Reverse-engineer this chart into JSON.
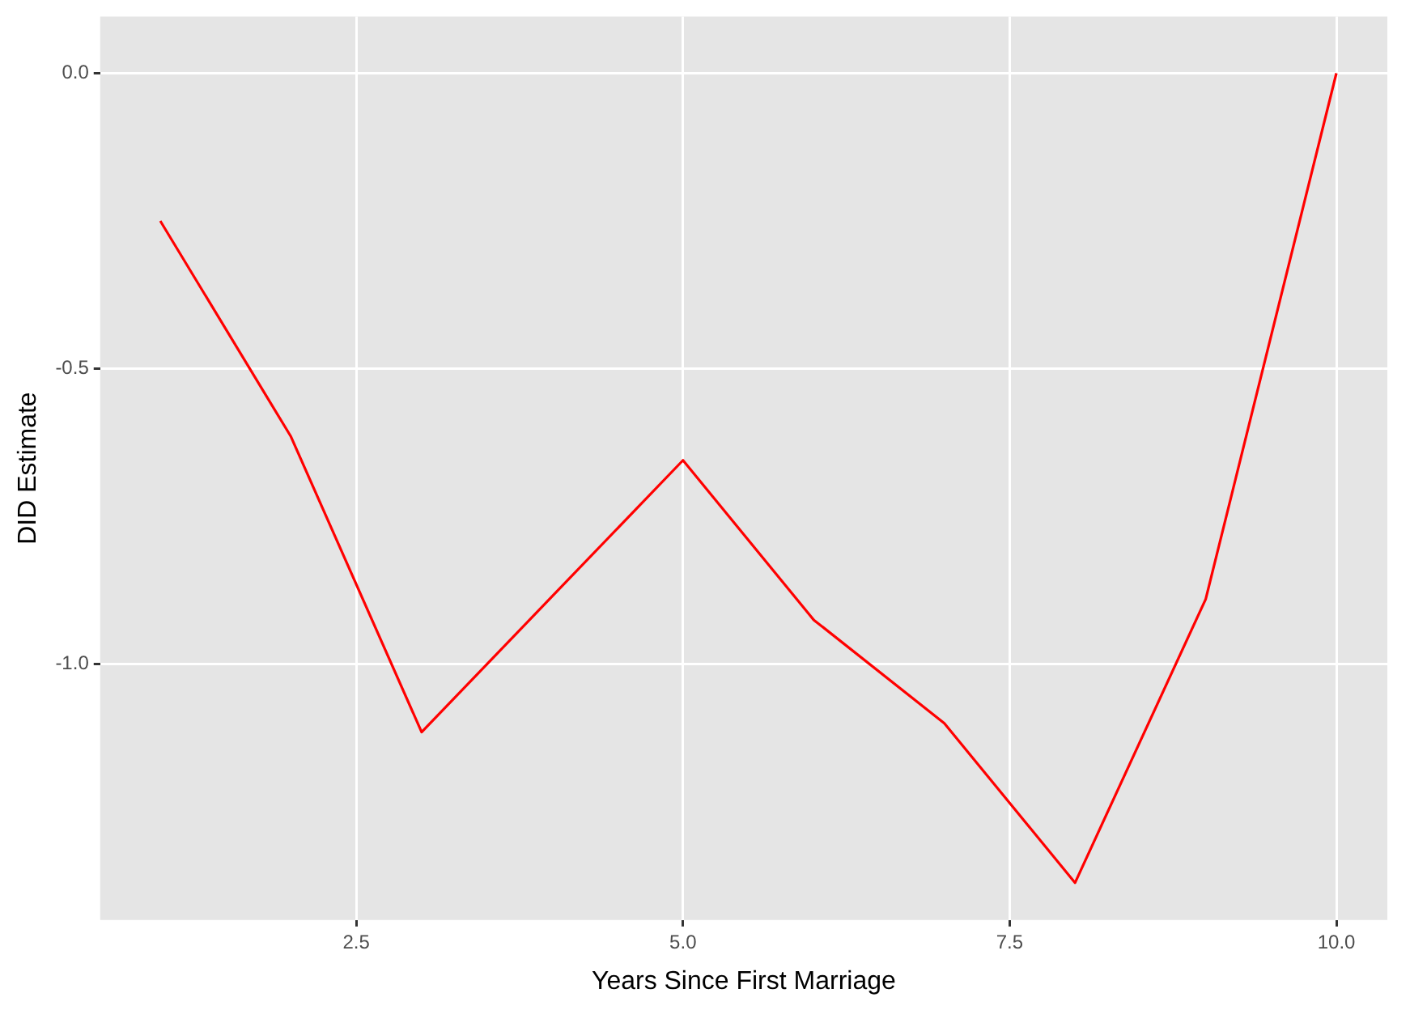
{
  "chart_data": {
    "type": "line",
    "xlabel": "Years Since First Marriage",
    "ylabel": "DID Estimate",
    "x": [
      1,
      2,
      3,
      4,
      5,
      6,
      7,
      8,
      9,
      10
    ],
    "series": [
      {
        "color": "#ff0000",
        "values": [
          -0.25,
          -0.615,
          -1.115,
          -0.885,
          -0.655,
          -0.925,
          -1.1,
          -1.37,
          -0.89,
          0.0
        ]
      }
    ],
    "xlim": [
      0.54,
      10.39
    ],
    "ylim": [
      -1.433,
      0.096
    ],
    "xticks": [
      {
        "value": 2.5,
        "label": "2.5"
      },
      {
        "value": 5,
        "label": "5.0"
      },
      {
        "value": 7.5,
        "label": "7.5"
      },
      {
        "value": 10,
        "label": "10.0"
      }
    ],
    "yticks": [
      {
        "value": 0,
        "label": "0.0"
      },
      {
        "value": -0.5,
        "label": "-0.5"
      },
      {
        "value": -1,
        "label": "-1.0"
      }
    ],
    "grid": true,
    "legend": false,
    "marker": "none",
    "line_style": "solid"
  }
}
